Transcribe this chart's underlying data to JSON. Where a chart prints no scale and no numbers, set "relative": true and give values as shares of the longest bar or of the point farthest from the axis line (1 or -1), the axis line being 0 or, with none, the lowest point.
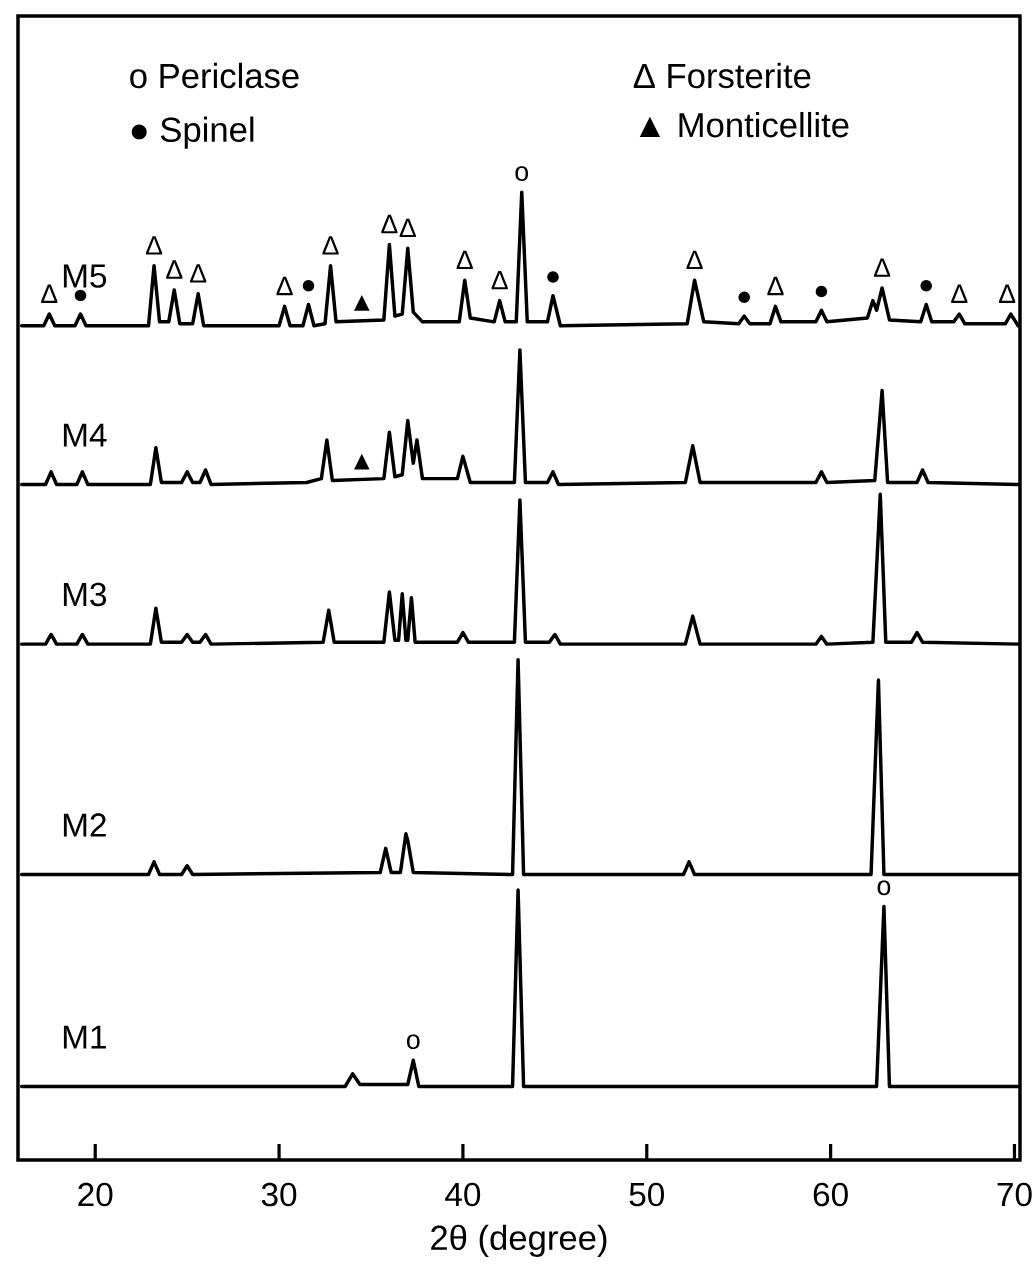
{
  "chart_data": {
    "type": "line",
    "relative": true,
    "xlabel": "2θ (degree)",
    "xlim": [
      15.8,
      70.3
    ],
    "xticks": [
      20,
      30,
      40,
      50,
      60,
      70
    ],
    "tick_labels": "x",
    "marker": "none",
    "line_style": "solid",
    "legend": false,
    "grid": false,
    "series": [
      {
        "name": "M5",
        "color": "#000000",
        "x": [
          16.0,
          17.2,
          17.5,
          17.8,
          18.9,
          19.2,
          19.5,
          22.9,
          23.2,
          23.5,
          24.0,
          24.3,
          24.6,
          25.3,
          25.6,
          25.9,
          30.0,
          30.3,
          30.6,
          31.3,
          31.6,
          31.9,
          32.5,
          32.8,
          33.1,
          35.7,
          36.0,
          36.3,
          36.7,
          37.0,
          37.3,
          37.8,
          39.8,
          40.1,
          40.4,
          41.7,
          42.0,
          42.3,
          42.9,
          43.2,
          43.5,
          44.6,
          44.9,
          45.3,
          52.2,
          52.6,
          53.1,
          55.0,
          55.3,
          55.6,
          56.7,
          57.0,
          57.3,
          59.2,
          59.5,
          59.8,
          62.0,
          62.3,
          62.5,
          62.8,
          63.2,
          64.9,
          65.2,
          65.5,
          66.7,
          67.0,
          67.3,
          69.5,
          69.8,
          70.2
        ],
        "values": [
          0.862,
          0.862,
          0.874,
          0.862,
          0.862,
          0.874,
          0.862,
          0.862,
          0.924,
          0.866,
          0.866,
          0.899,
          0.864,
          0.864,
          0.895,
          0.862,
          0.862,
          0.882,
          0.862,
          0.862,
          0.884,
          0.862,
          0.864,
          0.924,
          0.866,
          0.868,
          0.946,
          0.872,
          0.874,
          0.942,
          0.876,
          0.866,
          0.866,
          0.909,
          0.87,
          0.866,
          0.888,
          0.866,
          0.866,
          1.0,
          0.866,
          0.866,
          0.893,
          0.862,
          0.864,
          0.909,
          0.866,
          0.864,
          0.872,
          0.864,
          0.864,
          0.882,
          0.866,
          0.866,
          0.878,
          0.866,
          0.87,
          0.888,
          0.878,
          0.901,
          0.868,
          0.866,
          0.884,
          0.866,
          0.866,
          0.874,
          0.864,
          0.864,
          0.874,
          0.862
        ]
      },
      {
        "name": "M4",
        "color": "#000000",
        "x": [
          16.0,
          17.3,
          17.6,
          17.9,
          19.0,
          19.3,
          19.6,
          23.0,
          23.3,
          23.6,
          24.7,
          25.0,
          25.3,
          25.7,
          26.0,
          26.3,
          31.5,
          32.3,
          32.6,
          32.9,
          35.7,
          36.0,
          36.3,
          36.7,
          37.0,
          37.3,
          37.5,
          37.8,
          39.7,
          40.0,
          40.4,
          42.8,
          43.1,
          43.4,
          44.6,
          44.9,
          45.2,
          52.1,
          52.5,
          52.9,
          59.2,
          59.5,
          59.8,
          62.4,
          62.8,
          63.1,
          64.7,
          65.0,
          65.3,
          70.2
        ],
        "values": [
          0.698,
          0.698,
          0.711,
          0.698,
          0.698,
          0.711,
          0.698,
          0.698,
          0.736,
          0.7,
          0.7,
          0.711,
          0.7,
          0.7,
          0.713,
          0.698,
          0.7,
          0.704,
          0.744,
          0.702,
          0.704,
          0.752,
          0.706,
          0.708,
          0.764,
          0.72,
          0.744,
          0.704,
          0.704,
          0.727,
          0.7,
          0.7,
          0.837,
          0.7,
          0.7,
          0.711,
          0.698,
          0.7,
          0.738,
          0.7,
          0.7,
          0.711,
          0.7,
          0.702,
          0.795,
          0.7,
          0.7,
          0.713,
          0.7,
          0.698
        ]
      },
      {
        "name": "M3",
        "color": "#000000",
        "x": [
          16.0,
          17.3,
          17.6,
          17.9,
          19.0,
          19.3,
          19.6,
          23.0,
          23.3,
          23.6,
          24.7,
          25.0,
          25.3,
          25.7,
          26.0,
          26.3,
          32.4,
          32.7,
          33.0,
          35.7,
          36.0,
          36.3,
          36.5,
          36.7,
          36.9,
          37.0,
          37.2,
          37.4,
          39.7,
          40.0,
          40.3,
          42.8,
          43.1,
          43.4,
          44.7,
          45.0,
          45.3,
          52.1,
          52.5,
          52.9,
          59.2,
          59.5,
          59.8,
          62.3,
          62.7,
          63.0,
          64.4,
          64.7,
          65.0,
          70.2
        ],
        "values": [
          0.533,
          0.533,
          0.543,
          0.533,
          0.533,
          0.543,
          0.533,
          0.533,
          0.57,
          0.535,
          0.535,
          0.543,
          0.535,
          0.535,
          0.543,
          0.533,
          0.535,
          0.568,
          0.535,
          0.535,
          0.587,
          0.537,
          0.537,
          0.585,
          0.537,
          0.537,
          0.581,
          0.535,
          0.535,
          0.545,
          0.535,
          0.535,
          0.682,
          0.535,
          0.535,
          0.543,
          0.533,
          0.533,
          0.562,
          0.533,
          0.533,
          0.541,
          0.533,
          0.535,
          0.688,
          0.535,
          0.535,
          0.545,
          0.535,
          0.533
        ]
      },
      {
        "name": "M2",
        "color": "#000000",
        "x": [
          16.0,
          22.9,
          23.2,
          23.5,
          24.7,
          25.0,
          25.3,
          35.5,
          35.8,
          36.1,
          36.6,
          36.9,
          37.0,
          37.3,
          42.7,
          43.0,
          43.3,
          52.0,
          52.3,
          52.6,
          62.2,
          62.6,
          62.9,
          70.2
        ],
        "values": [
          0.295,
          0.295,
          0.308,
          0.295,
          0.295,
          0.304,
          0.295,
          0.297,
          0.322,
          0.297,
          0.297,
          0.337,
          0.33,
          0.297,
          0.295,
          0.517,
          0.295,
          0.295,
          0.308,
          0.295,
          0.295,
          0.496,
          0.295,
          0.295
        ]
      },
      {
        "name": "M1",
        "color": "#000000",
        "x": [
          16.0,
          33.6,
          34.0,
          34.4,
          35.0,
          37.0,
          37.3,
          37.6,
          42.7,
          43.0,
          43.3,
          62.5,
          62.9,
          63.2,
          70.2
        ],
        "values": [
          0.076,
          0.076,
          0.089,
          0.078,
          0.078,
          0.078,
          0.103,
          0.076,
          0.076,
          0.279,
          0.076,
          0.076,
          0.262,
          0.076,
          0.076
        ]
      }
    ],
    "annotations": [
      "o Periclase",
      "● Spinel",
      "Δ Forsterite",
      "▲ Monticellite",
      {
        "text": "Δ",
        "x": 17.5,
        "y": 0.874
      },
      {
        "text": "●",
        "x": 19.2,
        "y": 0.874
      },
      {
        "text": "Δ",
        "x": 23.2,
        "y": 0.924
      },
      {
        "text": "Δ",
        "x": 24.3,
        "y": 0.899
      },
      {
        "text": "Δ",
        "x": 25.6,
        "y": 0.895
      },
      {
        "text": "Δ",
        "x": 30.3,
        "y": 0.882
      },
      {
        "text": "●",
        "x": 31.6,
        "y": 0.884
      },
      {
        "text": "Δ",
        "x": 32.8,
        "y": 0.924
      },
      {
        "text": "▲",
        "x": 34.5,
        "y": 0.866
      },
      {
        "text": "Δ",
        "x": 36.0,
        "y": 0.946
      },
      {
        "text": "Δ",
        "x": 37.0,
        "y": 0.942
      },
      {
        "text": "Δ",
        "x": 40.1,
        "y": 0.909
      },
      {
        "text": "Δ",
        "x": 42.0,
        "y": 0.888
      },
      {
        "text": "o",
        "x": 43.2,
        "y": 1.0
      },
      {
        "text": "●",
        "x": 44.9,
        "y": 0.893
      },
      {
        "text": "Δ",
        "x": 52.6,
        "y": 0.909
      },
      {
        "text": "●",
        "x": 55.3,
        "y": 0.872
      },
      {
        "text": "Δ",
        "x": 57.0,
        "y": 0.882
      },
      {
        "text": "●",
        "x": 59.5,
        "y": 0.878
      },
      {
        "text": "Δ",
        "x": 62.8,
        "y": 0.901
      },
      {
        "text": "●",
        "x": 65.2,
        "y": 0.884
      },
      {
        "text": "Δ",
        "x": 67.0,
        "y": 0.874
      },
      {
        "text": "Δ",
        "x": 69.6,
        "y": 0.874
      },
      {
        "text": "▲",
        "x": 34.5,
        "y": 0.702
      },
      {
        "text": "o",
        "x": 37.3,
        "y": 0.103
      },
      {
        "text": "o",
        "x": 62.9,
        "y": 0.262
      }
    ]
  }
}
